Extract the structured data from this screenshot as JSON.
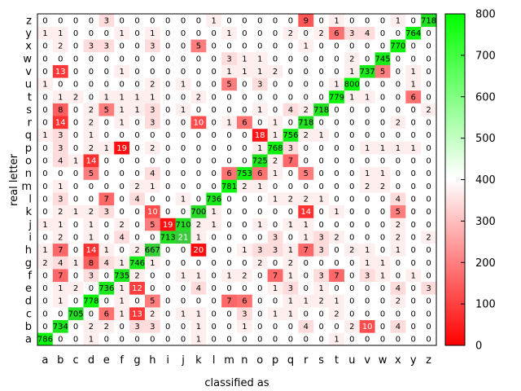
{
  "chart_data": {
    "type": "heatmap",
    "xlabel": "classified as",
    "ylabel": "real letter",
    "x_categories": [
      "a",
      "b",
      "c",
      "d",
      "e",
      "f",
      "g",
      "h",
      "i",
      "j",
      "k",
      "l",
      "m",
      "n",
      "o",
      "p",
      "q",
      "r",
      "s",
      "t",
      "u",
      "v",
      "w",
      "x",
      "y",
      "z"
    ],
    "y_categories": [
      "a",
      "b",
      "c",
      "d",
      "e",
      "f",
      "g",
      "h",
      "i",
      "j",
      "k",
      "l",
      "m",
      "n",
      "o",
      "p",
      "q",
      "r",
      "s",
      "t",
      "u",
      "v",
      "w",
      "x",
      "y",
      "z"
    ],
    "matrix": [
      [
        786,
        0,
        0,
        1,
        0,
        0,
        0,
        0,
        0,
        0,
        1,
        0,
        0,
        0,
        0,
        0,
        0,
        0,
        0,
        1,
        0,
        0,
        0,
        0,
        0,
        0
      ],
      [
        0,
        734,
        0,
        2,
        2,
        0,
        3,
        3,
        0,
        0,
        1,
        0,
        0,
        1,
        0,
        0,
        0,
        4,
        0,
        0,
        2,
        10,
        0,
        4,
        0,
        0
      ],
      [
        0,
        0,
        705,
        0,
        6,
        1,
        13,
        2,
        0,
        1,
        1,
        0,
        0,
        3,
        0,
        1,
        1,
        0,
        0,
        2,
        0,
        0,
        0,
        0,
        0,
        0
      ],
      [
        0,
        1,
        0,
        778,
        0,
        1,
        0,
        5,
        0,
        0,
        0,
        0,
        7,
        6,
        0,
        0,
        1,
        1,
        2,
        1,
        0,
        0,
        0,
        2,
        0,
        0
      ],
      [
        0,
        1,
        2,
        0,
        736,
        1,
        12,
        0,
        0,
        0,
        4,
        0,
        0,
        0,
        0,
        1,
        3,
        0,
        1,
        0,
        0,
        0,
        0,
        4,
        0,
        3
      ],
      [
        0,
        7,
        0,
        3,
        0,
        735,
        2,
        0,
        0,
        1,
        1,
        0,
        1,
        2,
        0,
        7,
        1,
        0,
        3,
        7,
        0,
        3,
        1,
        0,
        1,
        0
      ],
      [
        2,
        4,
        1,
        8,
        4,
        1,
        746,
        1,
        0,
        0,
        0,
        0,
        0,
        0,
        2,
        0,
        2,
        0,
        0,
        0,
        0,
        1,
        1,
        0,
        0,
        0
      ],
      [
        1,
        7,
        0,
        14,
        1,
        0,
        2,
        667,
        0,
        0,
        20,
        0,
        0,
        1,
        3,
        3,
        1,
        7,
        3,
        0,
        2,
        1,
        0,
        1,
        0,
        0
      ],
      [
        0,
        2,
        0,
        1,
        0,
        4,
        0,
        0,
        713,
        21,
        1,
        0,
        0,
        0,
        0,
        3,
        0,
        1,
        3,
        2,
        0,
        0,
        0,
        2,
        0,
        2
      ],
      [
        1,
        1,
        0,
        1,
        0,
        2,
        0,
        5,
        19,
        710,
        2,
        1,
        0,
        0,
        1,
        0,
        1,
        1,
        0,
        0,
        0,
        0,
        0,
        2,
        0,
        0
      ],
      [
        0,
        2,
        1,
        2,
        3,
        0,
        0,
        10,
        0,
        0,
        700,
        1,
        0,
        0,
        0,
        0,
        0,
        14,
        0,
        1,
        0,
        0,
        0,
        5,
        0,
        0
      ],
      [
        0,
        3,
        0,
        0,
        7,
        0,
        4,
        0,
        0,
        1,
        0,
        736,
        0,
        0,
        0,
        1,
        2,
        2,
        1,
        0,
        0,
        0,
        0,
        4,
        0,
        0
      ],
      [
        0,
        1,
        0,
        0,
        0,
        0,
        2,
        1,
        0,
        0,
        0,
        0,
        781,
        2,
        1,
        0,
        0,
        0,
        0,
        0,
        0,
        2,
        2,
        0,
        0,
        0
      ],
      [
        0,
        0,
        0,
        5,
        0,
        0,
        0,
        4,
        0,
        0,
        0,
        0,
        6,
        753,
        6,
        1,
        0,
        5,
        0,
        0,
        0,
        1,
        1,
        0,
        0,
        0
      ],
      [
        0,
        4,
        1,
        14,
        0,
        0,
        0,
        0,
        0,
        0,
        0,
        0,
        0,
        0,
        725,
        2,
        7,
        0,
        0,
        0,
        0,
        0,
        0,
        0,
        0,
        0
      ],
      [
        0,
        3,
        0,
        2,
        1,
        19,
        0,
        2,
        0,
        0,
        0,
        0,
        0,
        0,
        1,
        768,
        3,
        0,
        0,
        0,
        0,
        1,
        1,
        1,
        1,
        0
      ],
      [
        1,
        3,
        0,
        1,
        0,
        0,
        0,
        0,
        0,
        0,
        0,
        0,
        0,
        0,
        18,
        1,
        756,
        2,
        1,
        0,
        0,
        0,
        0,
        0,
        0,
        0
      ],
      [
        0,
        14,
        0,
        2,
        0,
        1,
        0,
        3,
        0,
        0,
        10,
        0,
        1,
        6,
        0,
        1,
        0,
        718,
        0,
        0,
        0,
        0,
        0,
        2,
        0,
        0
      ],
      [
        0,
        8,
        0,
        2,
        5,
        1,
        1,
        3,
        0,
        1,
        0,
        0,
        0,
        0,
        1,
        0,
        4,
        2,
        718,
        0,
        0,
        0,
        0,
        0,
        0,
        2
      ],
      [
        0,
        1,
        2,
        0,
        1,
        1,
        1,
        1,
        0,
        0,
        2,
        0,
        0,
        0,
        0,
        0,
        0,
        0,
        0,
        779,
        1,
        1,
        0,
        0,
        6,
        0
      ],
      [
        1,
        0,
        0,
        0,
        0,
        0,
        0,
        2,
        0,
        1,
        0,
        0,
        5,
        0,
        3,
        0,
        0,
        0,
        0,
        1,
        800,
        0,
        0,
        0,
        1,
        0
      ],
      [
        0,
        13,
        0,
        0,
        0,
        1,
        0,
        0,
        0,
        0,
        0,
        0,
        1,
        1,
        1,
        2,
        0,
        0,
        0,
        0,
        1,
        737,
        5,
        0,
        1,
        0
      ],
      [
        0,
        0,
        0,
        0,
        0,
        0,
        0,
        0,
        0,
        0,
        0,
        0,
        3,
        1,
        1,
        0,
        0,
        0,
        0,
        0,
        2,
        0,
        745,
        0,
        0,
        0
      ],
      [
        0,
        2,
        0,
        3,
        3,
        0,
        0,
        3,
        0,
        0,
        5,
        0,
        0,
        0,
        0,
        0,
        0,
        1,
        0,
        0,
        0,
        0,
        0,
        770,
        0,
        0
      ],
      [
        1,
        1,
        0,
        0,
        0,
        1,
        0,
        1,
        0,
        0,
        0,
        0,
        1,
        0,
        0,
        0,
        2,
        0,
        2,
        6,
        3,
        4,
        0,
        0,
        764,
        0
      ],
      [
        0,
        0,
        0,
        0,
        3,
        0,
        0,
        0,
        0,
        0,
        0,
        1,
        0,
        0,
        0,
        0,
        0,
        9,
        0,
        1,
        0,
        0,
        0,
        1,
        0,
        718
      ]
    ],
    "colorbar": {
      "min": 0,
      "max": 800,
      "ticks": [
        0,
        100,
        200,
        300,
        400,
        500,
        600,
        700,
        800
      ],
      "colors": {
        "low": "#ff0000",
        "mid": "#ffffff",
        "high": "#00ff00"
      }
    },
    "grid": false
  }
}
